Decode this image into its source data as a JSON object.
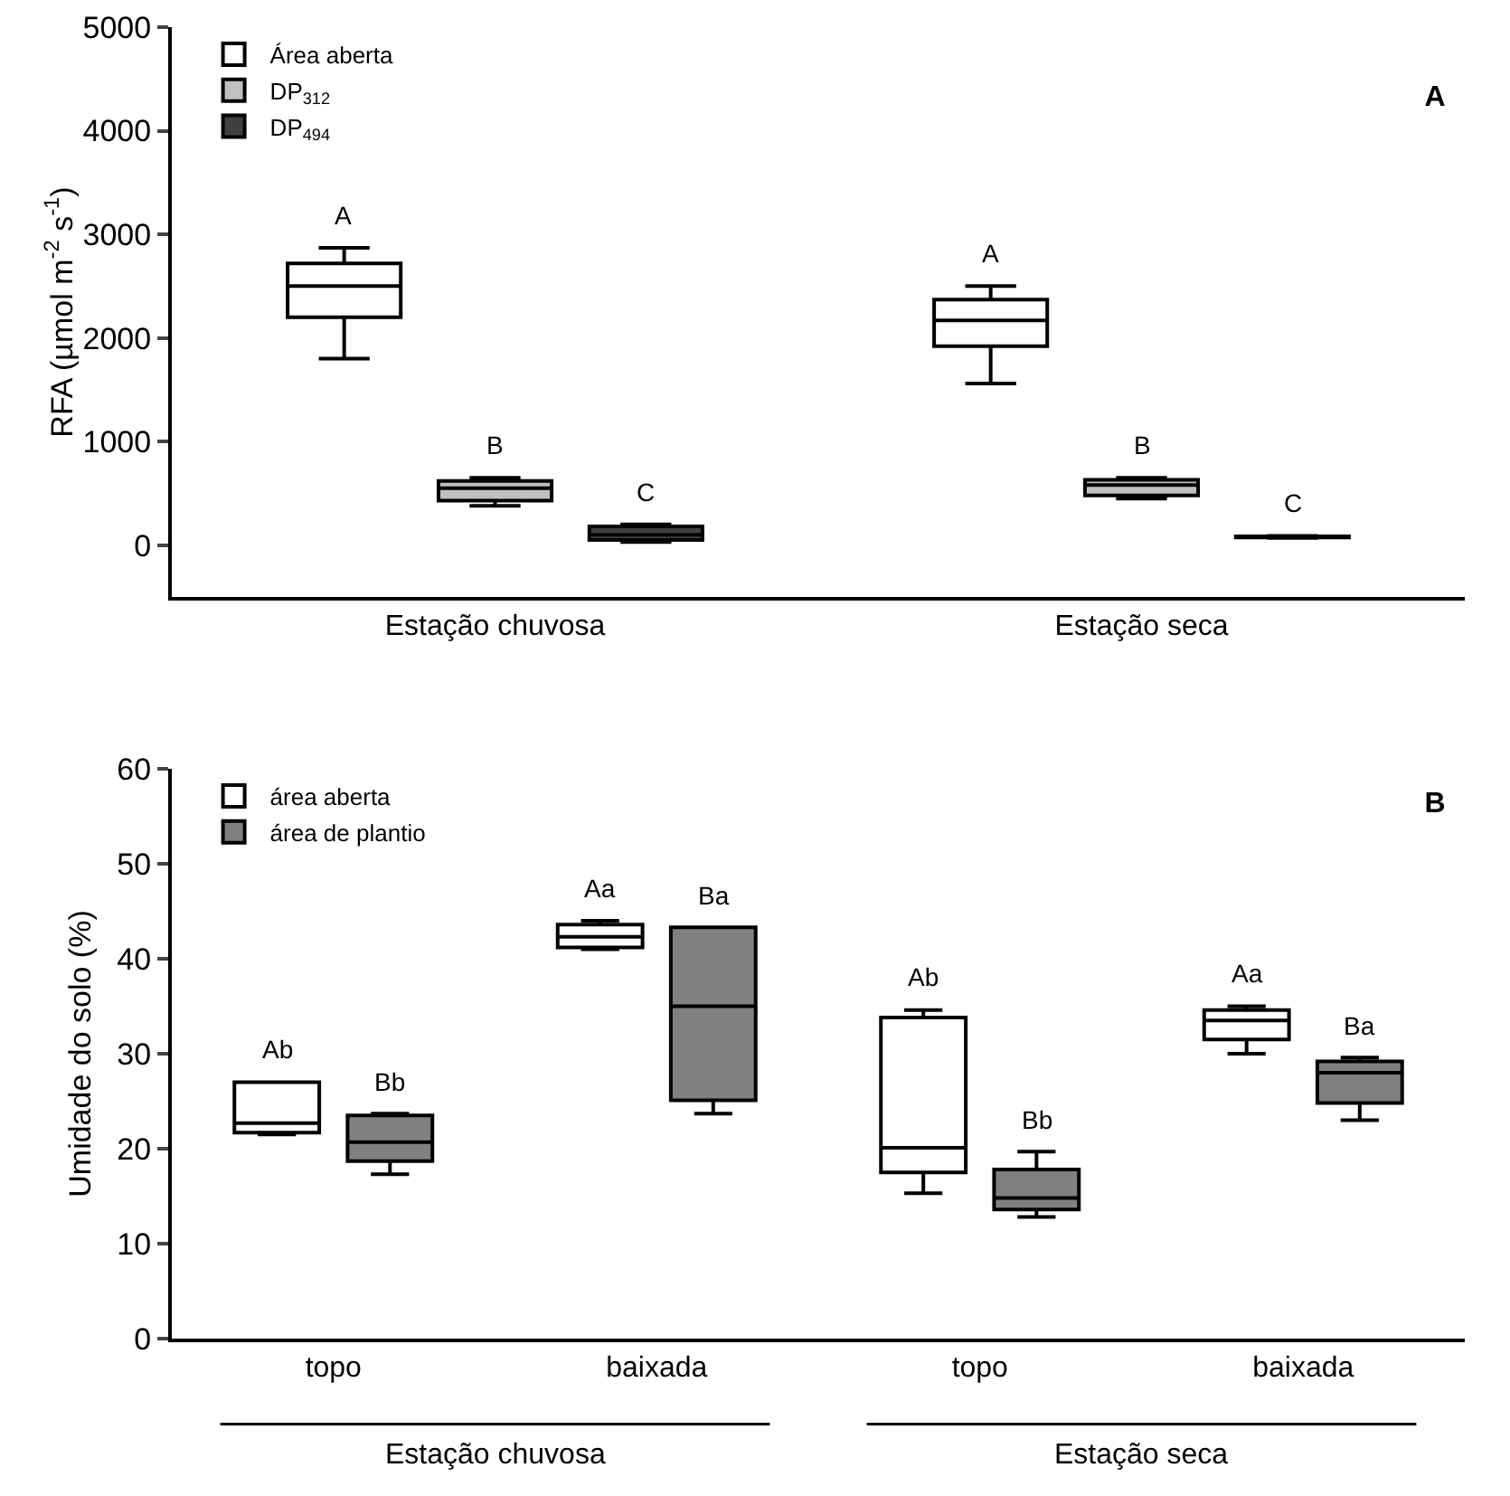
{
  "chart_data": [
    {
      "type": "box",
      "title": "A",
      "ylabel": "RFA (µmol m$^{-2}$ s$^{-1}$)",
      "categories": [
        "Estação chuvosa",
        "Estação seca"
      ],
      "ylim": [
        -500,
        5000
      ],
      "yticks": [
        0,
        1000,
        2000,
        3000,
        4000,
        5000
      ],
      "grid": false,
      "legend": "top left",
      "series": [
        {
          "name": "Área aberta",
          "color": "#ffffff",
          "boxes": [
            {
              "low": 1800,
              "q1": 2200,
              "median": 2500,
              "q3": 2720,
              "high": 2870
            },
            {
              "low": 1560,
              "q1": 1920,
              "median": 2170,
              "q3": 2370,
              "high": 2500
            }
          ]
        },
        {
          "name": "DP$_{312}$",
          "color": "#c0c0c0",
          "boxes": [
            {
              "low": 380,
              "q1": 430,
              "median": 550,
              "q3": 620,
              "high": 650
            },
            {
              "low": 450,
              "q1": 480,
              "median": 580,
              "q3": 630,
              "high": 650
            }
          ]
        },
        {
          "name": "DP$_{494}$",
          "color": "#404040",
          "boxes": [
            {
              "low": 30,
              "q1": 50,
              "median": 100,
              "q3": 180,
              "high": 200
            },
            {
              "low": 70,
              "q1": 75,
              "median": 80,
              "q3": 85,
              "high": 90
            }
          ]
        }
      ],
      "annotations": [
        "A",
        "B",
        "C",
        "A",
        "B",
        "C"
      ]
    },
    {
      "type": "box",
      "title": "B",
      "ylabel": "Umidade do solo (%)",
      "categories": [
        "topo",
        "baixada",
        "topo",
        "baixada"
      ],
      "ylim": [
        0,
        60
      ],
      "yticks": [
        0,
        10,
        20,
        30,
        40,
        50,
        60
      ],
      "grid": false,
      "legend": "top left",
      "series": [
        {
          "name": "área aberta",
          "color": "#ffffff",
          "boxes": [
            {
              "low": 21.5,
              "q1": 21.7,
              "median": 22.7,
              "q3": 27,
              "high": 27
            },
            {
              "low": 41,
              "q1": 41.2,
              "median": 42.3,
              "q3": 43.6,
              "high": 44
            },
            {
              "low": 15.3,
              "q1": 17.5,
              "median": 20.1,
              "q3": 33.8,
              "high": 34.6
            },
            {
              "low": 30,
              "q1": 31.5,
              "median": 33.5,
              "q3": 34.6,
              "high": 35
            }
          ]
        },
        {
          "name": "área de plantio",
          "color": "#808080",
          "boxes": [
            {
              "low": 17.3,
              "q1": 18.7,
              "median": 20.7,
              "q3": 23.5,
              "high": 23.7
            },
            {
              "low": 23.7,
              "q1": 25.1,
              "median": 35,
              "q3": 43.3,
              "high": 43.3
            },
            {
              "low": 12.8,
              "q1": 13.6,
              "median": 14.8,
              "q3": 17.8,
              "high": 19.7
            },
            {
              "low": 23,
              "q1": 24.8,
              "median": 28,
              "q3": 29.2,
              "high": 29.6
            }
          ]
        }
      ],
      "annotations": [
        "Ab",
        "Bb",
        "Aa",
        "Ba",
        "Ab",
        "Bb",
        "Aa",
        "Ba",
        "Estação chuvosa",
        "Estação seca"
      ]
    }
  ]
}
